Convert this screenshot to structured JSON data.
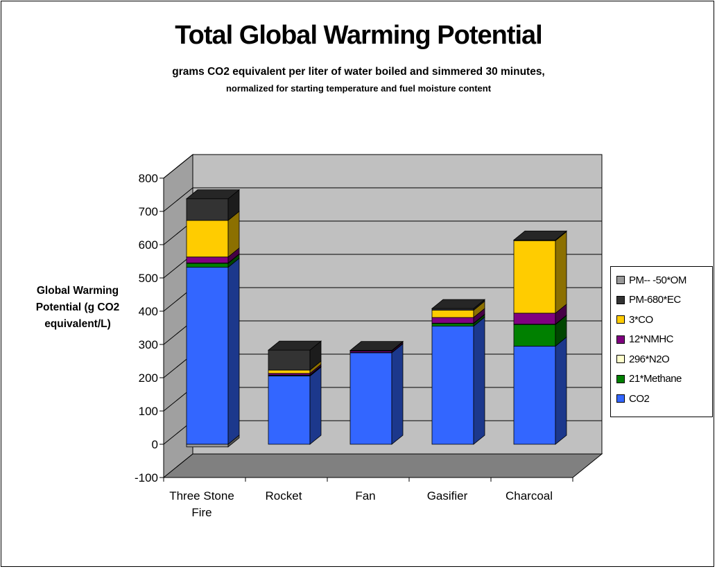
{
  "chart_data": {
    "type": "bar",
    "stacked": true,
    "three_d": true,
    "title": "Total Global Warming Potential",
    "subtitle_lines": [
      "grams CO2 equivalent per liter of water boiled and simmered 30 minutes,",
      "normalized for starting temperature and fuel moisture content"
    ],
    "ylabel_lines": [
      "Global Warming",
      "Potential (g CO2",
      "equivalent/L)"
    ],
    "xlabel": "",
    "ylim": [
      -100,
      800
    ],
    "yticks": [
      -100,
      0,
      100,
      200,
      300,
      400,
      500,
      600,
      700,
      800
    ],
    "grid": true,
    "legend_position": "right",
    "categories": [
      [
        "Three Stone",
        "Fire"
      ],
      [
        "Rocket"
      ],
      [
        "Fan"
      ],
      [
        "Gasifier"
      ],
      [
        "Charcoal"
      ]
    ],
    "series": [
      {
        "name": "CO2",
        "color": "#3366ff",
        "values": [
          532,
          205,
          275,
          355,
          295
        ]
      },
      {
        "name": "21*Methane",
        "color": "#008000",
        "values": [
          12,
          2,
          1,
          8,
          65
        ]
      },
      {
        "name": "296*N2O",
        "color": "#ffffcc",
        "values": [
          1,
          1,
          0,
          1,
          1
        ]
      },
      {
        "name": "12*NMHC",
        "color": "#800080",
        "values": [
          18,
          5,
          4,
          17,
          33
        ]
      },
      {
        "name": "3*CO",
        "color": "#ffcc00",
        "values": [
          110,
          10,
          1,
          22,
          218
        ]
      },
      {
        "name": "PM-680*EC",
        "color": "#333333",
        "values": [
          65,
          60,
          1,
          5,
          2
        ]
      },
      {
        "name": "PM-- -50*OM",
        "color": "#999999",
        "values": [
          -8,
          0,
          0,
          0,
          0
        ]
      }
    ]
  }
}
